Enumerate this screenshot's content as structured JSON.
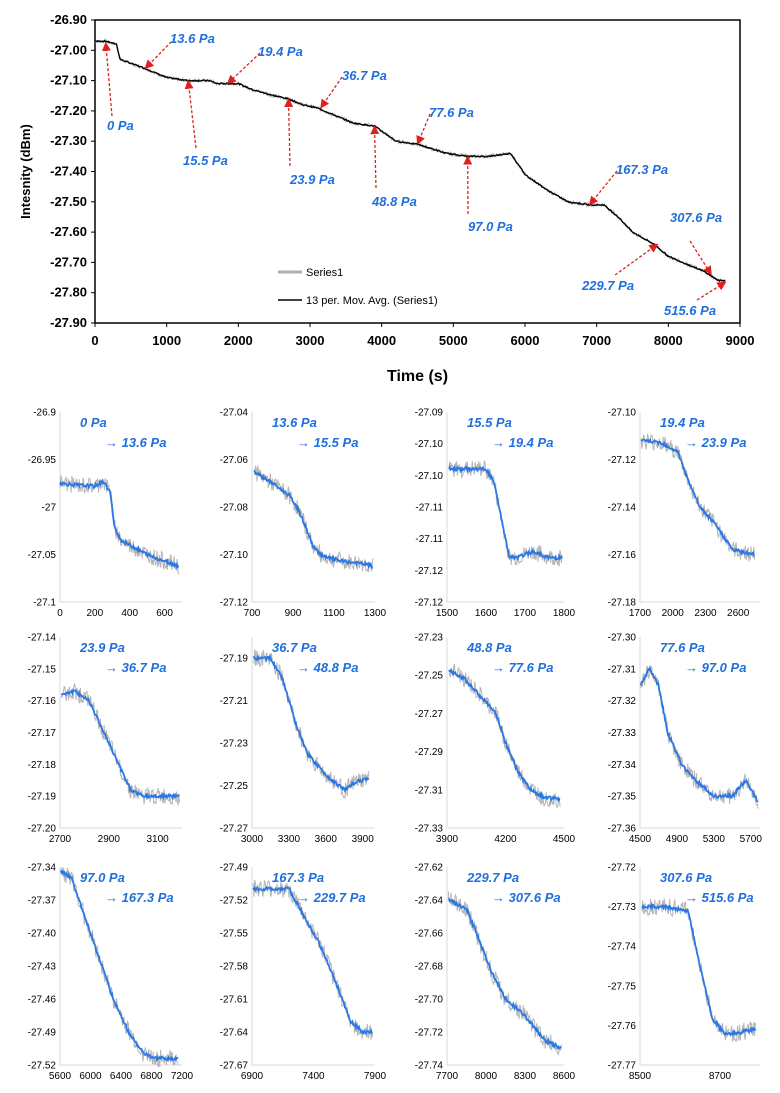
{
  "chart_data": [
    {
      "type": "line",
      "id": "main",
      "xlabel": "Time (s)",
      "ylabel": "Intesnity (dBm)",
      "xlim": [
        0,
        9000
      ],
      "ylim": [
        -27.9,
        -26.9
      ],
      "xticks": [
        0,
        1000,
        2000,
        3000,
        4000,
        5000,
        6000,
        7000,
        8000,
        9000
      ],
      "xtick_labels": [
        "0",
        "1000",
        "2000",
        "3000",
        "4000",
        "5000",
        "6000",
        "7000",
        "8000",
        "9000"
      ],
      "yticks": [
        -27.9,
        -27.8,
        -27.7,
        -27.6,
        -27.5,
        -27.4,
        -27.3,
        -27.2,
        -27.1,
        -27.0,
        -26.9
      ],
      "ytick_labels": [
        "-27.90",
        "-27.80",
        "-27.70",
        "-27.60",
        "-27.50",
        "-27.40",
        "-27.30",
        "-27.20",
        "-27.10",
        "-27.00",
        "-26.90"
      ],
      "legend": [
        {
          "name": "Series1",
          "color": "#b0b0b0"
        },
        {
          "name": "13 per. Mov. Avg. (Series1)",
          "color": "#000000"
        }
      ],
      "legend_position": "bottom-left",
      "series": [
        {
          "name": "Series1",
          "color": "#b0b0b0",
          "x": [
            0,
            150,
            300,
            350,
            700,
            1000,
            1300,
            1600,
            1700,
            2000,
            2200,
            2500,
            2700,
            2900,
            3100,
            3300,
            3600,
            3900,
            4200,
            4500,
            4900,
            5200,
            5500,
            5800,
            6000,
            6300,
            6600,
            6900,
            7100,
            7300,
            7500,
            7800,
            8000,
            8300,
            8500,
            8700,
            8800
          ],
          "y": [
            -26.97,
            -26.97,
            -26.98,
            -27.03,
            -27.06,
            -27.09,
            -27.1,
            -27.1,
            -27.11,
            -27.11,
            -27.13,
            -27.15,
            -27.16,
            -27.18,
            -27.19,
            -27.21,
            -27.24,
            -27.25,
            -27.3,
            -27.31,
            -27.34,
            -27.35,
            -27.35,
            -27.34,
            -27.41,
            -27.46,
            -27.5,
            -27.51,
            -27.51,
            -27.55,
            -27.6,
            -27.64,
            -27.68,
            -27.71,
            -27.73,
            -27.76,
            -27.76
          ]
        },
        {
          "name": "13 per. Mov. Avg. (Series1)",
          "color": "#000000",
          "x": [
            0,
            150,
            300,
            350,
            700,
            1000,
            1300,
            1600,
            1700,
            2000,
            2200,
            2500,
            2700,
            2900,
            3100,
            3300,
            3600,
            3900,
            4200,
            4500,
            4900,
            5200,
            5500,
            5800,
            6000,
            6300,
            6600,
            6900,
            7100,
            7300,
            7500,
            7800,
            8000,
            8300,
            8500,
            8700,
            8800
          ],
          "y": [
            -26.97,
            -26.97,
            -26.98,
            -27.03,
            -27.06,
            -27.09,
            -27.1,
            -27.1,
            -27.11,
            -27.11,
            -27.13,
            -27.15,
            -27.16,
            -27.18,
            -27.19,
            -27.21,
            -27.24,
            -27.25,
            -27.3,
            -27.31,
            -27.34,
            -27.35,
            -27.35,
            -27.34,
            -27.41,
            -27.46,
            -27.5,
            -27.51,
            -27.51,
            -27.55,
            -27.6,
            -27.64,
            -27.68,
            -27.71,
            -27.73,
            -27.76,
            -27.76
          ]
        }
      ],
      "annotations": [
        {
          "text": "0 Pa",
          "point": [
            150,
            -26.975
          ]
        },
        {
          "text": "13.6 Pa",
          "point": [
            700,
            -27.06
          ]
        },
        {
          "text": "15.5 Pa",
          "point": [
            1300,
            -27.1
          ]
        },
        {
          "text": "19.4 Pa",
          "point": [
            1850,
            -27.11
          ]
        },
        {
          "text": "23.9 Pa",
          "point": [
            2700,
            -27.16
          ]
        },
        {
          "text": "36.7 Pa",
          "point": [
            3150,
            -27.19
          ]
        },
        {
          "text": "48.8 Pa",
          "point": [
            3900,
            -27.25
          ]
        },
        {
          "text": "77.6 Pa",
          "point": [
            4500,
            -27.31
          ]
        },
        {
          "text": "97.0 Pa",
          "point": [
            5200,
            -27.35
          ]
        },
        {
          "text": "167.3 Pa",
          "point": [
            6900,
            -27.51
          ]
        },
        {
          "text": "229.7 Pa",
          "point": [
            7850,
            -27.64
          ]
        },
        {
          "text": "307.6 Pa",
          "point": [
            8600,
            -27.74
          ]
        },
        {
          "text": "515.6 Pa",
          "point": [
            8800,
            -27.765
          ]
        }
      ]
    },
    {
      "type": "line",
      "id": "p1",
      "title_from": "0 Pa",
      "title_to": "→ 13.6 Pa",
      "xlim": [
        0,
        700
      ],
      "ylim": [
        -27.1,
        -26.9
      ],
      "xticks": [
        "0",
        "200",
        "400",
        "600"
      ],
      "xtick_values": [
        0,
        200,
        400,
        600
      ],
      "yticks": [
        "-26.9",
        "-26.95",
        "-27",
        "-27.05",
        "-27.1"
      ],
      "ytick_values": [
        -26.9,
        -26.95,
        -27,
        -27.05,
        -27.1
      ],
      "x": [
        0,
        100,
        200,
        250,
        290,
        310,
        350,
        400,
        500,
        600,
        680
      ],
      "y": [
        -26.975,
        -26.977,
        -26.978,
        -26.973,
        -26.985,
        -27.02,
        -27.035,
        -27.04,
        -27.05,
        -27.057,
        -27.062
      ]
    },
    {
      "type": "line",
      "id": "p2",
      "title_from": "13.6 Pa",
      "title_to": "→ 15.5 Pa",
      "xlim": [
        700,
        1300
      ],
      "ylim": [
        -27.12,
        -27.04
      ],
      "xticks": [
        "700",
        "900",
        "1100",
        "1300"
      ],
      "xtick_values": [
        700,
        900,
        1100,
        1300
      ],
      "yticks": [
        "-27.04",
        "-27.06",
        "-27.08",
        "-27.10",
        "-27.12"
      ],
      "ytick_values": [
        -27.04,
        -27.06,
        -27.08,
        -27.1,
        -27.12
      ],
      "x": [
        710,
        800,
        880,
        920,
        960,
        1000,
        1050,
        1150,
        1250,
        1290
      ],
      "y": [
        -27.065,
        -27.07,
        -27.075,
        -27.08,
        -27.088,
        -27.097,
        -27.101,
        -27.103,
        -27.104,
        -27.105
      ]
    },
    {
      "type": "line",
      "id": "p3",
      "title_from": "15.5 Pa",
      "title_to": "→ 19.4 Pa",
      "xlim": [
        1500,
        1800
      ],
      "ylim": [
        -27.12,
        -27.09
      ],
      "xticks": [
        "1500",
        "1600",
        "1700",
        "1800"
      ],
      "xtick_values": [
        1500,
        1600,
        1700,
        1800
      ],
      "yticks": [
        "-27.09",
        "-27.10",
        "-27.10",
        "-27.11",
        "-27.11",
        "-27.12",
        "-27.12"
      ],
      "ytick_values": [
        -27.09,
        -27.095,
        -27.1,
        -27.105,
        -27.11,
        -27.115,
        -27.12
      ],
      "x": [
        1505,
        1550,
        1600,
        1620,
        1640,
        1660,
        1680,
        1720,
        1760,
        1795
      ],
      "y": [
        -27.099,
        -27.099,
        -27.099,
        -27.101,
        -27.107,
        -27.113,
        -27.113,
        -27.112,
        -27.113,
        -27.113
      ]
    },
    {
      "type": "line",
      "id": "p4",
      "title_from": "19.4 Pa",
      "title_to": "→ 23.9 Pa",
      "xlim": [
        1700,
        2800
      ],
      "ylim": [
        -27.18,
        -27.1
      ],
      "xticks": [
        "1700",
        "2000",
        "2300",
        "2600"
      ],
      "xtick_values": [
        1700,
        2000,
        2300,
        2600
      ],
      "yticks": [
        "-27.10",
        "-27.12",
        "-27.14",
        "-27.16",
        "-27.18"
      ],
      "ytick_values": [
        -27.1,
        -27.12,
        -27.14,
        -27.16,
        -27.18
      ],
      "x": [
        1710,
        1900,
        2050,
        2150,
        2250,
        2400,
        2550,
        2650,
        2750
      ],
      "y": [
        -27.112,
        -27.113,
        -27.117,
        -27.13,
        -27.14,
        -27.148,
        -27.158,
        -27.159,
        -27.16
      ]
    },
    {
      "type": "line",
      "id": "p5",
      "title_from": "23.9 Pa",
      "title_to": "→ 36.7 Pa",
      "xlim": [
        2700,
        3200
      ],
      "ylim": [
        -27.2,
        -27.14
      ],
      "xticks": [
        "2700",
        "2900",
        "3100"
      ],
      "xtick_values": [
        2700,
        2900,
        3100
      ],
      "yticks": [
        "-27.14",
        "-27.15",
        "-27.16",
        "-27.17",
        "-27.18",
        "-27.19",
        "-27.20"
      ],
      "ytick_values": [
        -27.14,
        -27.15,
        -27.16,
        -27.17,
        -27.18,
        -27.19,
        -27.2
      ],
      "x": [
        2705,
        2760,
        2820,
        2880,
        2940,
        2990,
        3040,
        3100,
        3190
      ],
      "y": [
        -27.158,
        -27.157,
        -27.16,
        -27.17,
        -27.18,
        -27.188,
        -27.19,
        -27.19,
        -27.19
      ]
    },
    {
      "type": "line",
      "id": "p6",
      "title_from": "36.7 Pa",
      "title_to": "→ 48.8 Pa",
      "xlim": [
        3000,
        4000
      ],
      "ylim": [
        -27.27,
        -27.18
      ],
      "xticks": [
        "3000",
        "3300",
        "3600",
        "3900"
      ],
      "xtick_values": [
        3000,
        3300,
        3600,
        3900
      ],
      "yticks": [
        "-27.19",
        "-27.21",
        "-27.23",
        "-27.25",
        "-27.27"
      ],
      "ytick_values": [
        -27.19,
        -27.21,
        -27.23,
        -27.25,
        -27.27
      ],
      "x": [
        3010,
        3150,
        3250,
        3350,
        3450,
        3600,
        3750,
        3850,
        3950
      ],
      "y": [
        -27.19,
        -27.19,
        -27.2,
        -27.22,
        -27.235,
        -27.245,
        -27.252,
        -27.248,
        -27.247
      ]
    },
    {
      "type": "line",
      "id": "p7",
      "title_from": "48.8 Pa",
      "title_to": "→ 77.6 Pa",
      "xlim": [
        3900,
        4500
      ],
      "ylim": [
        -27.33,
        -27.23
      ],
      "xticks": [
        "3900",
        "4200",
        "4500"
      ],
      "xtick_values": [
        3900,
        4200,
        4500
      ],
      "yticks": [
        "-27.23",
        "-27.25",
        "-27.27",
        "-27.29",
        "-27.31",
        "-27.33"
      ],
      "ytick_values": [
        -27.23,
        -27.25,
        -27.27,
        -27.29,
        -27.31,
        -27.33
      ],
      "x": [
        3910,
        3990,
        4080,
        4150,
        4200,
        4260,
        4330,
        4400,
        4480
      ],
      "y": [
        -27.247,
        -27.252,
        -27.262,
        -27.27,
        -27.285,
        -27.3,
        -27.31,
        -27.314,
        -27.315
      ]
    },
    {
      "type": "line",
      "id": "p8",
      "title_from": "77.6 Pa",
      "title_to": "→ 97.0 Pa",
      "xlim": [
        4500,
        5800
      ],
      "ylim": [
        -27.36,
        -27.3
      ],
      "xticks": [
        "4500",
        "4900",
        "5300",
        "5700"
      ],
      "xtick_values": [
        4500,
        4900,
        5300,
        5700
      ],
      "yticks": [
        "-27.30",
        "-27.31",
        "-27.32",
        "-27.33",
        "-27.34",
        "-27.35",
        "-27.36"
      ],
      "ytick_values": [
        -27.3,
        -27.31,
        -27.32,
        -27.33,
        -27.34,
        -27.35,
        -27.36
      ],
      "x": [
        4510,
        4600,
        4700,
        4800,
        4950,
        5100,
        5300,
        5500,
        5650,
        5780
      ],
      "y": [
        -27.315,
        -27.31,
        -27.315,
        -27.33,
        -27.34,
        -27.345,
        -27.35,
        -27.35,
        -27.345,
        -27.352
      ]
    },
    {
      "type": "line",
      "id": "p9",
      "title_from": "97.0 Pa",
      "title_to": "→ 167.3 Pa",
      "xlim": [
        5600,
        7200
      ],
      "ylim": [
        -27.52,
        -27.34
      ],
      "xticks": [
        "5600",
        "6000",
        "6400",
        "6800",
        "7200"
      ],
      "xtick_values": [
        5600,
        6000,
        6400,
        6800,
        7200
      ],
      "yticks": [
        "-27.34",
        "-27.37",
        "-27.40",
        "-27.43",
        "-27.46",
        "-27.49",
        "-27.52"
      ],
      "ytick_values": [
        -27.34,
        -27.37,
        -27.4,
        -27.43,
        -27.46,
        -27.49,
        -27.52
      ],
      "x": [
        5610,
        5750,
        5900,
        6100,
        6300,
        6500,
        6700,
        6850,
        7150
      ],
      "y": [
        -27.343,
        -27.35,
        -27.38,
        -27.42,
        -27.46,
        -27.49,
        -27.51,
        -27.514,
        -27.514
      ]
    },
    {
      "type": "line",
      "id": "p10",
      "title_from": "167.3 Pa",
      "title_to": "→ 229.7 Pa",
      "xlim": [
        6900,
        7900
      ],
      "ylim": [
        -27.67,
        -27.49
      ],
      "xticks": [
        "6900",
        "7400",
        "7900"
      ],
      "xtick_values": [
        6900,
        7400,
        7900
      ],
      "yticks": [
        "-27.49",
        "-27.52",
        "-27.55",
        "-27.58",
        "-27.61",
        "-27.64",
        "-27.67"
      ],
      "ytick_values": [
        -27.49,
        -27.52,
        -27.55,
        -27.58,
        -27.61,
        -27.64,
        -27.67
      ],
      "x": [
        6910,
        7050,
        7200,
        7300,
        7450,
        7600,
        7700,
        7800,
        7880
      ],
      "y": [
        -27.51,
        -27.51,
        -27.51,
        -27.53,
        -27.56,
        -27.6,
        -27.63,
        -27.64,
        -27.64
      ]
    },
    {
      "type": "line",
      "id": "p11",
      "title_from": "229.7 Pa",
      "title_to": "→ 307.6 Pa",
      "xlim": [
        7700,
        8600
      ],
      "ylim": [
        -27.74,
        -27.62
      ],
      "xticks": [
        "7700",
        "8000",
        "8300",
        "8600"
      ],
      "xtick_values": [
        7700,
        8000,
        8300,
        8600
      ],
      "yticks": [
        "-27.62",
        "-27.64",
        "-27.66",
        "-27.68",
        "-27.70",
        "-27.72",
        "-27.74"
      ],
      "ytick_values": [
        -27.62,
        -27.64,
        -27.66,
        -27.68,
        -27.7,
        -27.72,
        -27.74
      ],
      "x": [
        7710,
        7850,
        7950,
        8050,
        8150,
        8300,
        8450,
        8580
      ],
      "y": [
        -27.64,
        -27.645,
        -27.665,
        -27.685,
        -27.7,
        -27.71,
        -27.725,
        -27.73
      ]
    },
    {
      "type": "line",
      "id": "p12",
      "title_from": "307.6 Pa",
      "title_to": "→ 515.6 Pa",
      "xlim": [
        8500,
        8800
      ],
      "ylim": [
        -27.77,
        -27.72
      ],
      "xticks": [
        "8500",
        "8700"
      ],
      "xtick_values": [
        8500,
        8700
      ],
      "yticks": [
        "-27.72",
        "-27.73",
        "-27.74",
        "-27.75",
        "-27.76",
        "-27.77"
      ],
      "ytick_values": [
        -27.72,
        -27.73,
        -27.74,
        -27.75,
        -27.76,
        -27.77
      ],
      "x": [
        8505,
        8560,
        8620,
        8650,
        8680,
        8710,
        8740,
        8790
      ],
      "y": [
        -27.73,
        -27.73,
        -27.731,
        -27.745,
        -27.758,
        -27.762,
        -27.762,
        -27.761
      ]
    }
  ]
}
